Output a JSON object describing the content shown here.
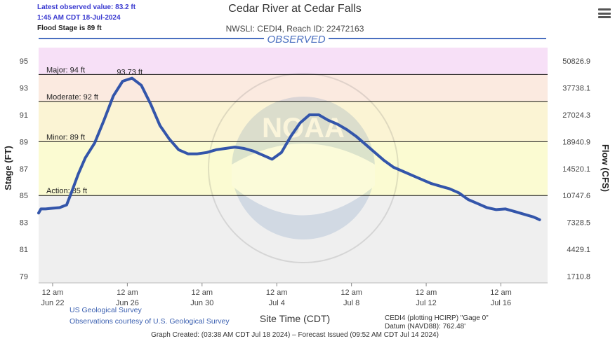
{
  "header": {
    "latest_value": "Latest observed value: 83.2 ft",
    "latest_time": "1:45 AM CDT 18-Jul-2024",
    "flood_stage": "Flood Stage is 89 ft",
    "title": "Cedar River at Cedar Falls",
    "subtitle": "NWSLI: CEDI4, Reach ID: 22472163",
    "menu_icon": "hamburger-menu-icon"
  },
  "footer": {
    "usgs_line1": "US Geological Survey",
    "usgs_line2": "Observations courtesy of U.S. Geological Survey",
    "plotting": "CEDI4 (plotting HCIRP) \"Gage 0\"",
    "datum": "Datum (NAVD88): 762.48'",
    "graph_created": "Graph Created: (03:38 AM CDT Jul 18 2024) – Forecast Issued (09:52 AM CDT Jul 14 2024)"
  },
  "colors": {
    "major": "#f7e0f7",
    "moderate": "#fbeae0",
    "minor": "#fbf4d4",
    "action": "#fbfbd2",
    "normal": "#efefef",
    "series": "#3355aa",
    "observed_bar": "#4a6fc0"
  },
  "chart_data": {
    "type": "line",
    "title": "Cedar River at Cedar Falls",
    "band_label": "OBSERVED",
    "xlabel": "Site Time (CDT)",
    "ylabel": "Stage (FT)",
    "y2label": "Flow (CFS)",
    "ylim": [
      78.5,
      96
    ],
    "x_range_days": [
      "2024-06-21T06:00",
      "2024-07-18T12:00"
    ],
    "y_ticks": [
      95,
      93,
      91,
      89,
      87,
      85,
      83,
      81,
      79
    ],
    "flow_ticks": [
      "50826.9",
      "37738.1",
      "27024.3",
      "18940.9",
      "14520.1",
      "10747.6",
      "7328.5",
      "4429.1",
      "1710.8"
    ],
    "x_ticks": [
      {
        "t": "2024-06-22T00:00",
        "time": "12 am",
        "date": "Jun 22"
      },
      {
        "t": "2024-06-26T00:00",
        "time": "12 am",
        "date": "Jun 26"
      },
      {
        "t": "2024-06-30T00:00",
        "time": "12 am",
        "date": "Jun 30"
      },
      {
        "t": "2024-07-04T00:00",
        "time": "12 am",
        "date": "Jul 4"
      },
      {
        "t": "2024-07-08T00:00",
        "time": "12 am",
        "date": "Jul 8"
      },
      {
        "t": "2024-07-12T00:00",
        "time": "12 am",
        "date": "Jul 12"
      },
      {
        "t": "2024-07-16T00:00",
        "time": "12 am",
        "date": "Jul 16"
      }
    ],
    "thresholds": [
      {
        "name": "Major",
        "label": "Major: 94 ft",
        "value": 94,
        "top": 96,
        "color": "#f7e0f7"
      },
      {
        "name": "Moderate",
        "label": "Moderate: 92 ft",
        "value": 92,
        "top": 94,
        "color": "#fbeae0"
      },
      {
        "name": "Minor",
        "label": "Minor: 89 ft",
        "value": 89,
        "top": 92,
        "color": "#fbf4d4"
      },
      {
        "name": "Action",
        "label": "Action: 85 ft",
        "value": 85,
        "top": 89,
        "color": "#fbfbd2"
      }
    ],
    "peak_label": {
      "t": "2024-06-26T03:00",
      "value": 93.73,
      "text": "93.73 ft"
    },
    "series": [
      {
        "points": [
          [
            "2024-06-21T06:00",
            83.7
          ],
          [
            "2024-06-21T09:00",
            84.0
          ],
          [
            "2024-06-21T15:00",
            84.0
          ],
          [
            "2024-06-22T00:00",
            84.05
          ],
          [
            "2024-06-22T09:00",
            84.1
          ],
          [
            "2024-06-22T18:00",
            84.3
          ],
          [
            "2024-06-23T00:00",
            85.2
          ],
          [
            "2024-06-23T09:00",
            86.6
          ],
          [
            "2024-06-23T18:00",
            87.8
          ],
          [
            "2024-06-24T06:00",
            88.9
          ],
          [
            "2024-06-24T18:00",
            90.6
          ],
          [
            "2024-06-25T06:00",
            92.4
          ],
          [
            "2024-06-25T18:00",
            93.5
          ],
          [
            "2024-06-26T06:00",
            93.73
          ],
          [
            "2024-06-26T18:00",
            93.2
          ],
          [
            "2024-06-27T06:00",
            91.8
          ],
          [
            "2024-06-27T18:00",
            90.2
          ],
          [
            "2024-06-28T06:00",
            89.2
          ],
          [
            "2024-06-28T18:00",
            88.4
          ],
          [
            "2024-06-29T06:00",
            88.1
          ],
          [
            "2024-06-29T18:00",
            88.1
          ],
          [
            "2024-06-30T06:00",
            88.2
          ],
          [
            "2024-06-30T18:00",
            88.4
          ],
          [
            "2024-07-01T06:00",
            88.5
          ],
          [
            "2024-07-01T18:00",
            88.6
          ],
          [
            "2024-07-02T06:00",
            88.5
          ],
          [
            "2024-07-02T18:00",
            88.3
          ],
          [
            "2024-07-03T06:00",
            88.0
          ],
          [
            "2024-07-03T18:00",
            87.7
          ],
          [
            "2024-07-04T06:00",
            88.2
          ],
          [
            "2024-07-04T18:00",
            89.4
          ],
          [
            "2024-07-05T06:00",
            90.4
          ],
          [
            "2024-07-05T18:00",
            91.0
          ],
          [
            "2024-07-06T06:00",
            91.0
          ],
          [
            "2024-07-06T18:00",
            90.6
          ],
          [
            "2024-07-07T06:00",
            90.3
          ],
          [
            "2024-07-07T18:00",
            89.9
          ],
          [
            "2024-07-08T06:00",
            89.4
          ],
          [
            "2024-07-08T18:00",
            88.8
          ],
          [
            "2024-07-09T06:00",
            88.2
          ],
          [
            "2024-07-09T18:00",
            87.6
          ],
          [
            "2024-07-10T06:00",
            87.1
          ],
          [
            "2024-07-10T18:00",
            86.8
          ],
          [
            "2024-07-11T06:00",
            86.5
          ],
          [
            "2024-07-11T18:00",
            86.2
          ],
          [
            "2024-07-12T06:00",
            85.9
          ],
          [
            "2024-07-12T18:00",
            85.7
          ],
          [
            "2024-07-13T06:00",
            85.5
          ],
          [
            "2024-07-13T18:00",
            85.2
          ],
          [
            "2024-07-14T06:00",
            84.7
          ],
          [
            "2024-07-14T18:00",
            84.4
          ],
          [
            "2024-07-15T06:00",
            84.1
          ],
          [
            "2024-07-15T18:00",
            83.95
          ],
          [
            "2024-07-16T06:00",
            84.0
          ],
          [
            "2024-07-16T18:00",
            83.8
          ],
          [
            "2024-07-17T06:00",
            83.6
          ],
          [
            "2024-07-17T18:00",
            83.4
          ],
          [
            "2024-07-18T01:45",
            83.2
          ]
        ]
      }
    ]
  }
}
